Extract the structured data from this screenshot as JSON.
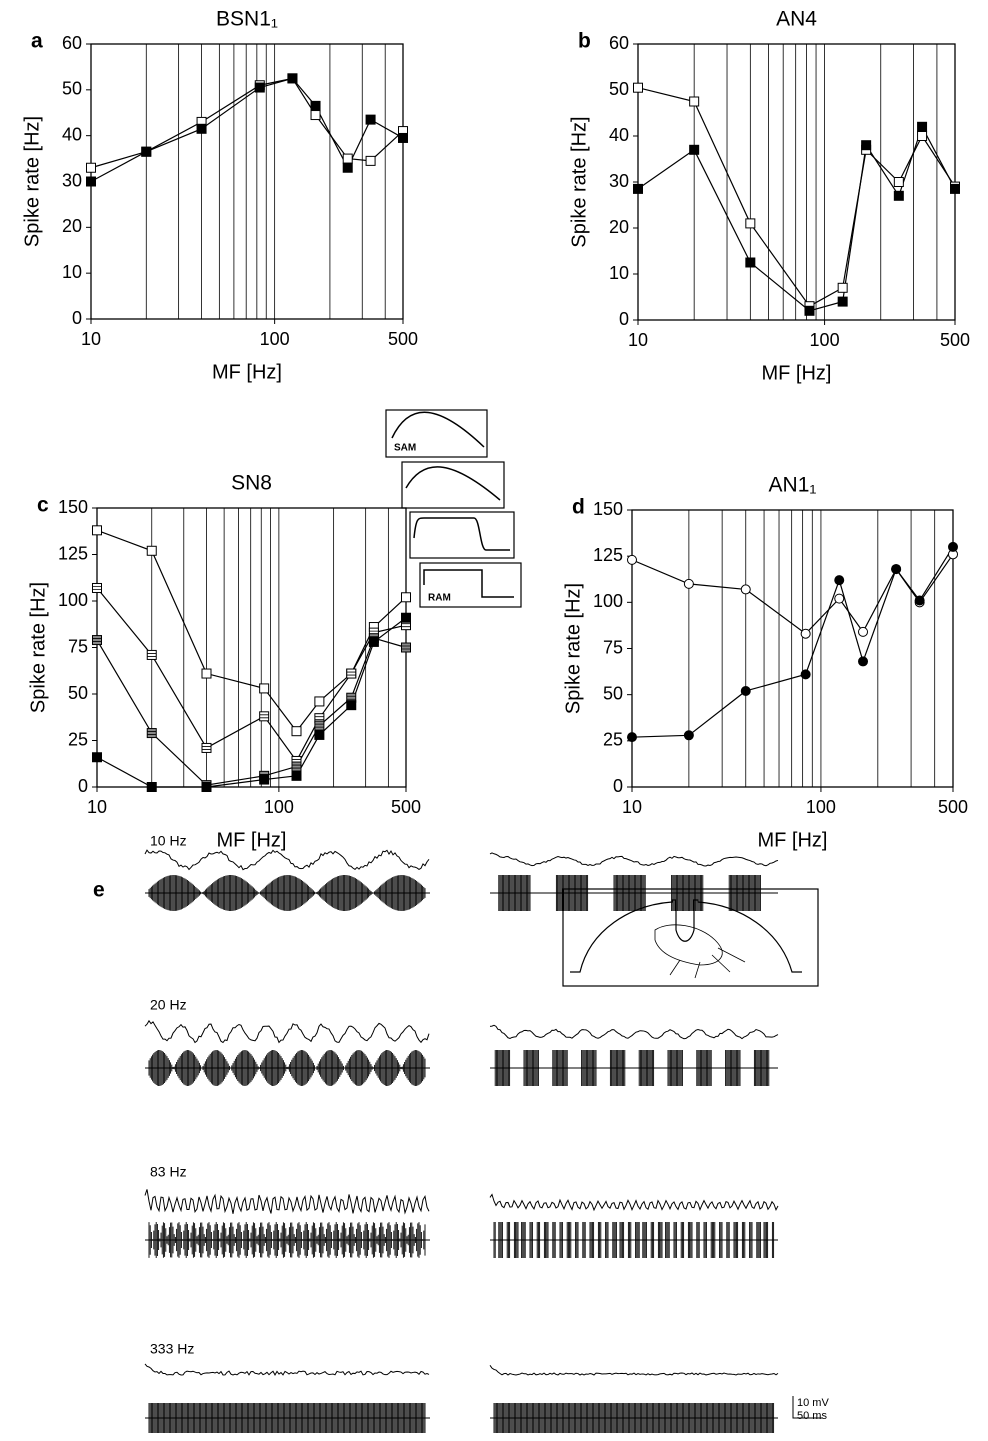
{
  "chart_data": [
    {
      "type": "line",
      "label": "a",
      "title": "BSN1₁",
      "ylabel": "Spike rate [Hz]",
      "xlabel": "MF [Hz]",
      "xscale": "log",
      "x": [
        10,
        20,
        40,
        83,
        125,
        167,
        250,
        333,
        500
      ],
      "xlim": [
        10,
        500
      ],
      "xticks": [
        10,
        100,
        500
      ],
      "xgrid": [
        20,
        30,
        40,
        50,
        60,
        70,
        80,
        90,
        100,
        200,
        300,
        400
      ],
      "ylim": [
        0,
        60
      ],
      "yticks": [
        0,
        10,
        20,
        30,
        40,
        50,
        60
      ],
      "series": [
        {
          "marker": "square",
          "color": "#ffffff",
          "values": [
            33,
            36.5,
            43,
            51,
            52.5,
            44.5,
            35,
            34.5,
            41
          ]
        },
        {
          "marker": "square",
          "color": "#000000",
          "values": [
            30,
            36.5,
            41.5,
            50.5,
            52.5,
            46.5,
            33,
            43.5,
            39.5
          ]
        }
      ]
    },
    {
      "type": "line",
      "label": "b",
      "title": "AN4",
      "ylabel": "Spike rate [Hz]",
      "xlabel": "MF [Hz]",
      "xscale": "log",
      "x": [
        10,
        20,
        40,
        83,
        125,
        167,
        250,
        333,
        500
      ],
      "xlim": [
        10,
        500
      ],
      "xticks": [
        10,
        100,
        500
      ],
      "xgrid": [
        20,
        30,
        40,
        50,
        60,
        70,
        80,
        90,
        100,
        200,
        300,
        400
      ],
      "ylim": [
        0,
        60
      ],
      "yticks": [
        0,
        10,
        20,
        30,
        40,
        50,
        60
      ],
      "series": [
        {
          "marker": "square",
          "color": "#ffffff",
          "values": [
            50.5,
            47.5,
            21,
            3,
            7,
            37,
            30,
            40,
            29
          ]
        },
        {
          "marker": "square",
          "color": "#000000",
          "values": [
            28.5,
            37,
            12.5,
            2,
            4,
            38,
            27,
            42,
            28.5
          ]
        }
      ]
    },
    {
      "type": "line",
      "label": "c",
      "title": "SN8",
      "ylabel": "Spike rate [Hz]",
      "xlabel": "MF [Hz]",
      "xscale": "log",
      "x": [
        10,
        20,
        40,
        83,
        125,
        167,
        250,
        333,
        500
      ],
      "xlim": [
        10,
        500
      ],
      "xticks": [
        10,
        100,
        500
      ],
      "xgrid": [
        20,
        30,
        40,
        50,
        60,
        70,
        80,
        90,
        100,
        200,
        300,
        400
      ],
      "ylim": [
        0,
        150
      ],
      "yticks": [
        0,
        25,
        50,
        75,
        100,
        125,
        150
      ],
      "annotations": [
        "SAM",
        "RAM"
      ],
      "series": [
        {
          "marker": "square",
          "color": "#ffffff",
          "values": [
            138,
            127,
            61,
            53,
            30,
            46,
            61,
            86,
            102
          ]
        },
        {
          "marker": "square-striped",
          "color": "#ffffff",
          "values": [
            107,
            71,
            21,
            38,
            14,
            37,
            61,
            83,
            87
          ]
        },
        {
          "marker": "square-striped",
          "color": "#888888",
          "values": [
            79,
            29,
            1,
            6,
            11,
            33,
            48,
            80,
            75
          ]
        },
        {
          "marker": "square",
          "color": "#000000",
          "values": [
            16,
            0,
            0,
            4,
            6,
            28,
            44,
            78,
            91
          ]
        }
      ]
    },
    {
      "type": "line",
      "label": "d",
      "title": "AN1₁",
      "ylabel": "Spike rate [Hz]",
      "xlabel": "MF [Hz]",
      "xscale": "log",
      "x": [
        10,
        20,
        40,
        83,
        125,
        167,
        250,
        333,
        500
      ],
      "xlim": [
        10,
        500
      ],
      "xticks": [
        10,
        100,
        500
      ],
      "xgrid": [
        20,
        30,
        40,
        50,
        60,
        70,
        80,
        90,
        100,
        200,
        300,
        400
      ],
      "ylim": [
        0,
        150
      ],
      "yticks": [
        0,
        25,
        50,
        75,
        100,
        125,
        150
      ],
      "series": [
        {
          "marker": "circle",
          "color": "#ffffff",
          "values": [
            123,
            110,
            107,
            83,
            102,
            84,
            118,
            100,
            126
          ]
        },
        {
          "marker": "circle",
          "color": "#000000",
          "values": [
            27,
            28,
            52,
            61,
            112,
            68,
            118,
            101,
            130
          ]
        }
      ]
    }
  ],
  "panel_e": {
    "label": "e",
    "rows": [
      "10 Hz",
      "20 Hz",
      "83 Hz",
      "333 Hz"
    ],
    "scale_y": "10 mV",
    "scale_x": "50 ms"
  }
}
